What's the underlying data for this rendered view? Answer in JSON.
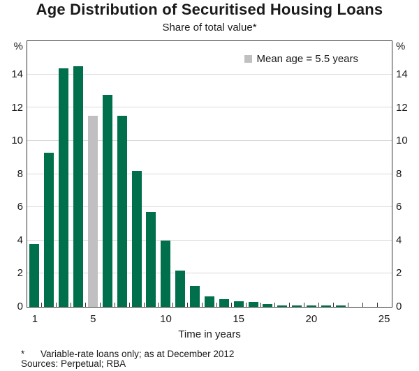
{
  "header": {
    "title": "Age Distribution of Securitised Housing Loans",
    "subtitle": "Share of total value*"
  },
  "legend": {
    "swatch_icon": "gray-square",
    "label": "Mean age = 5.5 years",
    "position": "top-right-inside-plot"
  },
  "y_axis": {
    "unit_left": "%",
    "unit_right": "%",
    "tick_labels": [
      0,
      2,
      4,
      6,
      8,
      10,
      12,
      14
    ]
  },
  "x_axis": {
    "title": "Time in years",
    "tick_labels": [
      1,
      5,
      10,
      15,
      20,
      25
    ]
  },
  "footnote": {
    "marker": "*",
    "note": "Variable-rate loans only; as at December 2012",
    "sources": "Sources: Perpetual; RBA"
  },
  "colors": {
    "bar_green": "#006F4B",
    "bar_gray": "#C0C0C3",
    "gridline": "#D9D9D9",
    "axis_frame": "#333333",
    "text": "#1A1A1A"
  },
  "chart_data": {
    "type": "bar",
    "title": "Age Distribution of Securitised Housing Loans",
    "subtitle": "Share of total value*",
    "xlabel": "Time in years",
    "ylabel": "%",
    "ylim": [
      0,
      16
    ],
    "xlim": [
      0.5,
      25.5
    ],
    "grid": "horizontal",
    "gridlines": [
      2,
      4,
      6,
      8,
      10,
      12,
      14
    ],
    "legend_position": "top-right",
    "x": [
      1,
      2,
      3,
      4,
      5,
      6,
      7,
      8,
      9,
      10,
      11,
      12,
      13,
      14,
      15,
      16,
      17,
      18,
      19,
      20,
      21,
      22,
      23,
      24,
      25
    ],
    "values": [
      3.8,
      9.3,
      14.35,
      14.5,
      11.5,
      12.75,
      11.5,
      8.2,
      5.7,
      4.0,
      2.2,
      1.25,
      0.65,
      0.45,
      0.35,
      0.3,
      0.15,
      0.1,
      0.1,
      0.1,
      0.1,
      0.1,
      0,
      0,
      0
    ],
    "mean_bar": {
      "x": 5,
      "value": 11.5,
      "label": "Mean age = 5.5 years"
    }
  }
}
